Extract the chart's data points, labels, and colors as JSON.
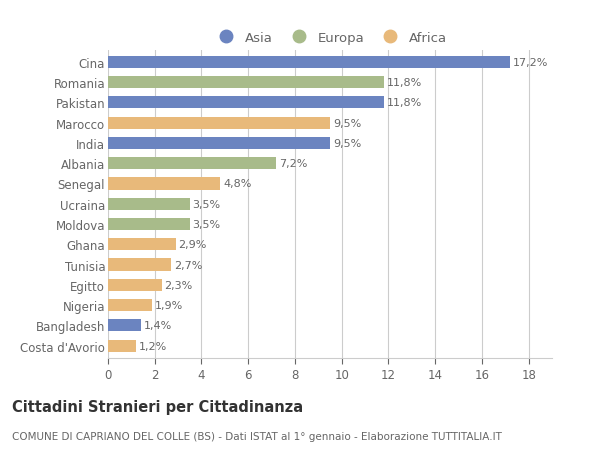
{
  "countries": [
    "Cina",
    "Romania",
    "Pakistan",
    "Marocco",
    "India",
    "Albania",
    "Senegal",
    "Ucraina",
    "Moldova",
    "Ghana",
    "Tunisia",
    "Egitto",
    "Nigeria",
    "Bangladesh",
    "Costa d'Avorio"
  ],
  "values": [
    17.2,
    11.8,
    11.8,
    9.5,
    9.5,
    7.2,
    4.8,
    3.5,
    3.5,
    2.9,
    2.7,
    2.3,
    1.9,
    1.4,
    1.2
  ],
  "labels": [
    "17,2%",
    "11,8%",
    "11,8%",
    "9,5%",
    "9,5%",
    "7,2%",
    "4,8%",
    "3,5%",
    "3,5%",
    "2,9%",
    "2,7%",
    "2,3%",
    "1,9%",
    "1,4%",
    "1,2%"
  ],
  "continents": [
    "Asia",
    "Europa",
    "Asia",
    "Africa",
    "Asia",
    "Europa",
    "Africa",
    "Europa",
    "Europa",
    "Africa",
    "Africa",
    "Africa",
    "Africa",
    "Asia",
    "Africa"
  ],
  "colors": {
    "Asia": "#6b84c0",
    "Europa": "#a8bb8a",
    "Africa": "#e8b97a"
  },
  "legend_labels": [
    "Asia",
    "Europa",
    "Africa"
  ],
  "title": "Cittadini Stranieri per Cittadinanza",
  "subtitle": "COMUNE DI CAPRIANO DEL COLLE (BS) - Dati ISTAT al 1° gennaio - Elaborazione TUTTITALIA.IT",
  "xlim": [
    0,
    19
  ],
  "xticks": [
    0,
    2,
    4,
    6,
    8,
    10,
    12,
    14,
    16,
    18
  ],
  "background_color": "#ffffff",
  "bar_height": 0.6,
  "label_fontsize": 8,
  "tick_fontsize": 8.5,
  "title_fontsize": 10.5,
  "subtitle_fontsize": 7.5
}
